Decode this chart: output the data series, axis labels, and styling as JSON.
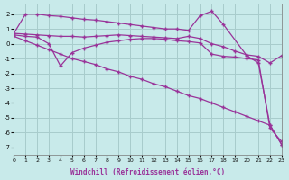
{
  "background_color": "#c8eaea",
  "grid_color": "#a8cccc",
  "line_color": "#993399",
  "marker": "+",
  "xlabel": "Windchill (Refroidissement éolien,°C)",
  "xlim": [
    0,
    23
  ],
  "ylim": [
    -7.5,
    2.7
  ],
  "yticks": [
    -7,
    -6,
    -5,
    -4,
    -3,
    -2,
    -1,
    0,
    1,
    2
  ],
  "xticks": [
    0,
    1,
    2,
    3,
    4,
    5,
    6,
    7,
    8,
    9,
    10,
    11,
    12,
    13,
    14,
    15,
    16,
    17,
    18,
    19,
    20,
    21,
    22,
    23
  ],
  "series": [
    {
      "x": [
        0,
        1,
        2,
        3,
        4,
        5,
        6,
        7,
        8,
        9,
        10,
        11,
        12,
        13,
        14,
        15,
        16,
        17,
        18,
        20,
        21,
        22,
        23
      ],
      "y": [
        0.7,
        2.0,
        2.0,
        1.9,
        1.85,
        1.75,
        1.65,
        1.6,
        1.5,
        1.4,
        1.3,
        1.2,
        1.1,
        1.0,
        1.0,
        0.9,
        1.9,
        2.2,
        1.3,
        -0.8,
        -1.3,
        -5.5,
        -6.8
      ]
    },
    {
      "x": [
        0,
        1,
        2,
        3,
        4,
        5,
        6,
        7,
        8,
        9,
        10,
        11,
        12,
        13,
        14,
        15,
        16,
        17,
        18,
        19,
        20,
        21,
        22,
        23
      ],
      "y": [
        0.7,
        0.65,
        0.6,
        0.55,
        0.5,
        0.5,
        0.45,
        0.5,
        0.55,
        0.6,
        0.55,
        0.5,
        0.45,
        0.4,
        0.35,
        0.5,
        0.35,
        0.0,
        -0.2,
        -0.5,
        -0.75,
        -0.85,
        -1.3,
        -0.8
      ]
    },
    {
      "x": [
        0,
        1,
        2,
        3,
        4,
        5,
        6,
        7,
        8,
        9,
        10,
        11,
        12,
        13,
        14,
        15,
        16,
        17,
        18,
        19,
        20,
        21,
        22,
        23
      ],
      "y": [
        0.6,
        0.5,
        0.45,
        0.0,
        -1.5,
        -0.6,
        -0.3,
        -0.1,
        0.1,
        0.2,
        0.3,
        0.35,
        0.35,
        0.3,
        0.2,
        0.15,
        0.05,
        -0.7,
        -0.85,
        -0.9,
        -1.0,
        -1.1,
        -5.7,
        -6.6
      ]
    },
    {
      "x": [
        0,
        1,
        2,
        3,
        4,
        5,
        6,
        7,
        8,
        9,
        10,
        11,
        12,
        13,
        14,
        15,
        16,
        17,
        18,
        19,
        20,
        21,
        22,
        23
      ],
      "y": [
        0.5,
        0.2,
        -0.1,
        -0.4,
        -0.7,
        -1.0,
        -1.2,
        -1.4,
        -1.7,
        -1.9,
        -2.2,
        -2.4,
        -2.7,
        -2.9,
        -3.2,
        -3.5,
        -3.7,
        -4.0,
        -4.3,
        -4.6,
        -4.9,
        -5.2,
        -5.5,
        -6.8
      ]
    }
  ]
}
